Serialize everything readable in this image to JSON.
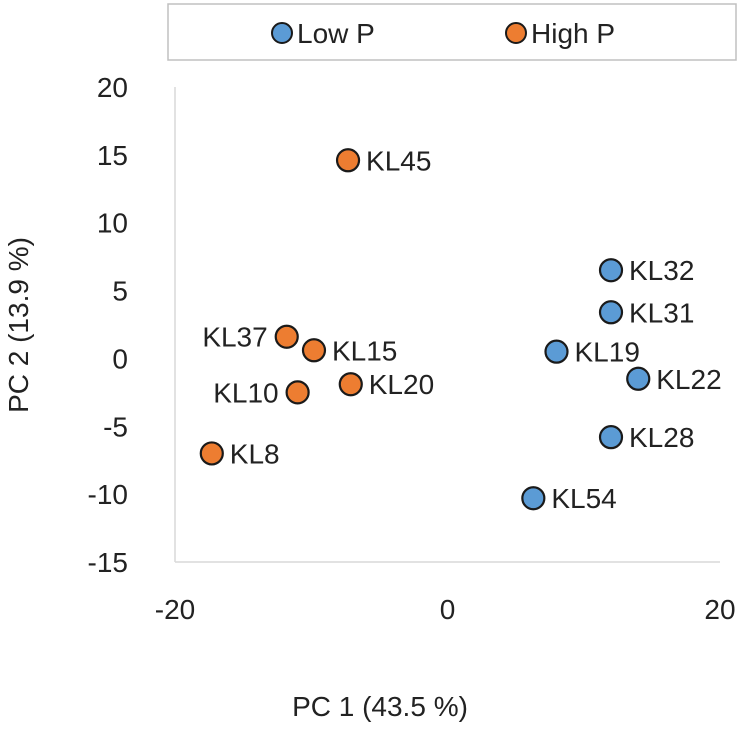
{
  "chart_data": {
    "type": "scatter",
    "title": "",
    "xlabel": "PC 1 (43.5 %)",
    "ylabel": "PC 2 (13.9 %)",
    "xlim": [
      -20,
      20
    ],
    "ylim": [
      -15,
      20
    ],
    "x_ticks": [
      -20,
      0,
      20
    ],
    "y_ticks": [
      -15,
      -10,
      -5,
      0,
      5,
      10,
      15,
      20
    ],
    "grid": false,
    "legend_position": "top",
    "series": [
      {
        "name": "Low P",
        "color": "#5b9bd5",
        "points": [
          {
            "label": "KL32",
            "x": 12.0,
            "y": 6.5
          },
          {
            "label": "KL31",
            "x": 12.0,
            "y": 3.4
          },
          {
            "label": "KL19",
            "x": 8.0,
            "y": 0.5
          },
          {
            "label": "KL22",
            "x": 14.0,
            "y": -1.5
          },
          {
            "label": "KL28",
            "x": 12.0,
            "y": -5.8
          },
          {
            "label": "KL54",
            "x": 6.3,
            "y": -10.3
          }
        ]
      },
      {
        "name": "High P",
        "color": "#ed7d31",
        "points": [
          {
            "label": "KL45",
            "x": -7.3,
            "y": 14.6
          },
          {
            "label": "KL37",
            "x": -11.8,
            "y": 1.6
          },
          {
            "label": "KL15",
            "x": -9.8,
            "y": 0.6
          },
          {
            "label": "KL20",
            "x": -7.1,
            "y": -1.9
          },
          {
            "label": "KL10",
            "x": -11.0,
            "y": -2.5
          },
          {
            "label": "KL8",
            "x": -17.3,
            "y": -7.0
          }
        ]
      }
    ]
  }
}
